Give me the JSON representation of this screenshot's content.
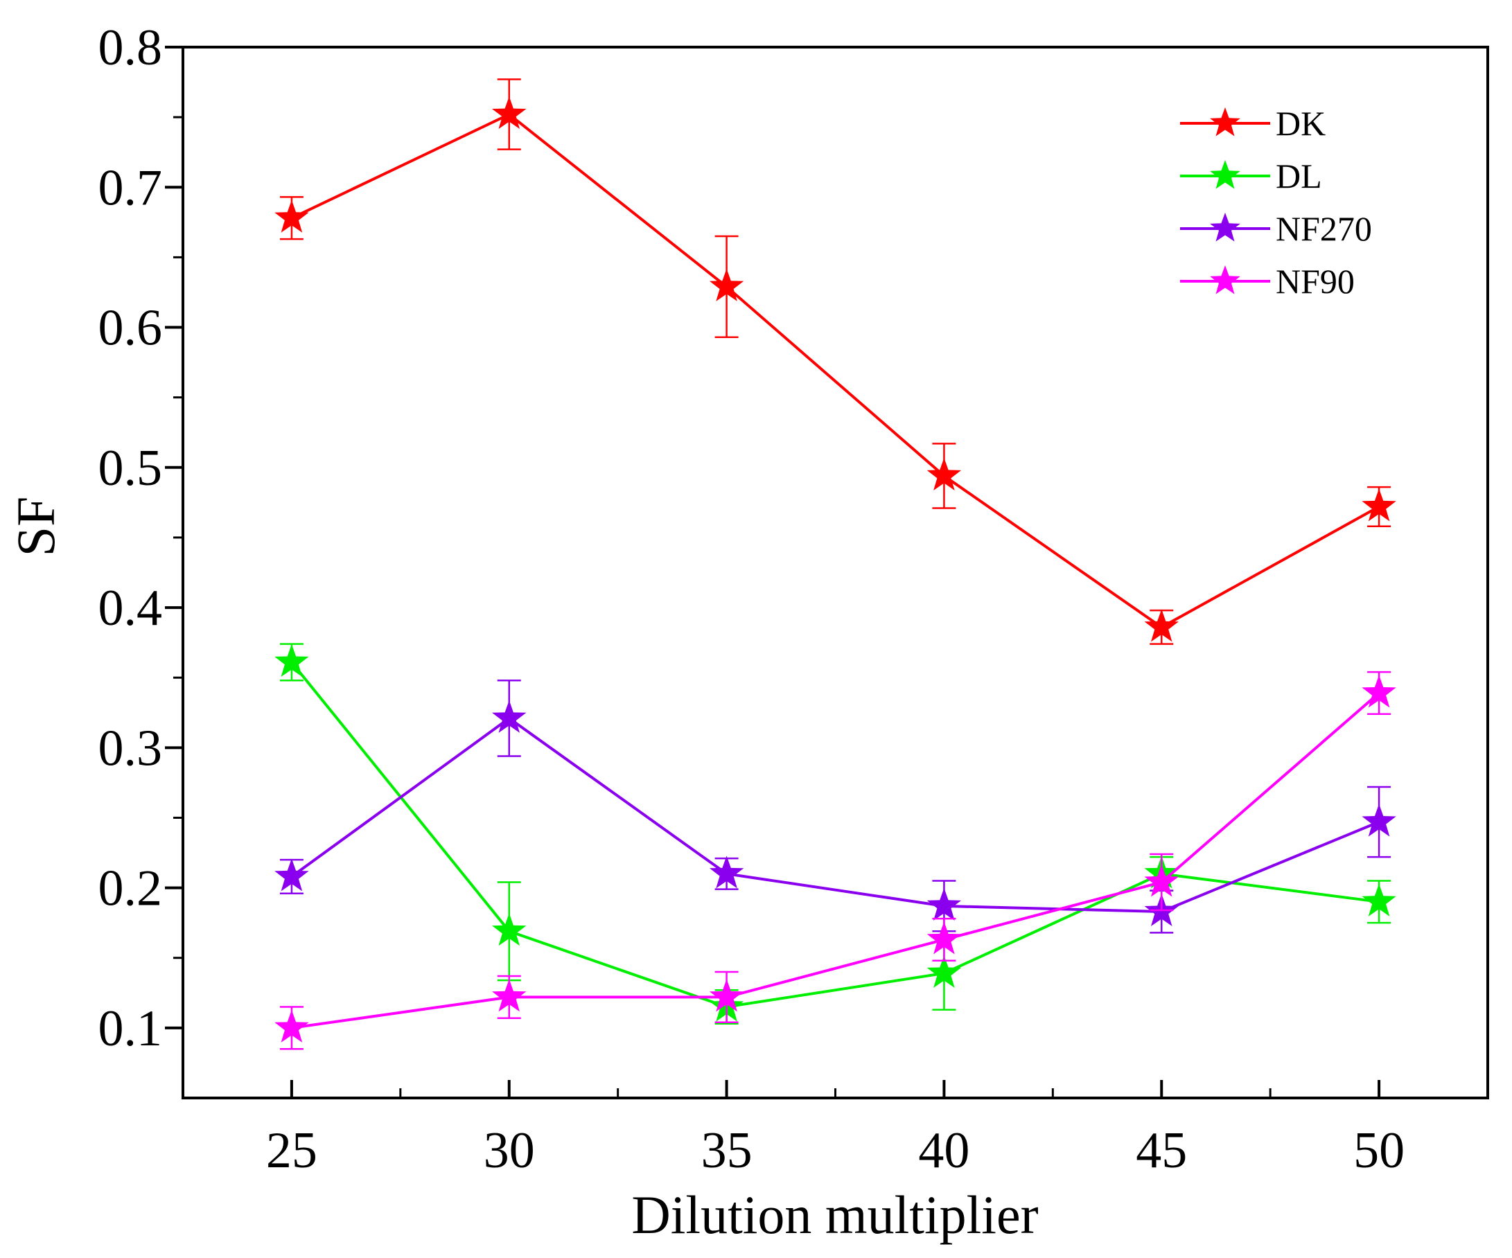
{
  "chart_data": {
    "type": "line",
    "title": "",
    "xlabel": "Dilution multiplier",
    "ylabel": "SF",
    "xlim": [
      22.5,
      52.5
    ],
    "ylim": [
      0.05,
      0.8
    ],
    "x_ticks": [
      25,
      30,
      35,
      40,
      45,
      50
    ],
    "x_tick_labels": [
      "25",
      "30",
      "35",
      "40",
      "45",
      "50"
    ],
    "y_ticks": [
      0.1,
      0.2,
      0.3,
      0.4,
      0.5,
      0.6,
      0.7,
      0.8
    ],
    "y_tick_labels": [
      "0.1",
      "0.2",
      "0.3",
      "0.4",
      "0.5",
      "0.6",
      "0.7",
      "0.8"
    ],
    "grid": false,
    "legend_position": "top-right",
    "x": [
      25,
      30,
      35,
      40,
      45,
      50
    ],
    "series": [
      {
        "name": "DK",
        "color": "#ff0000",
        "values": [
          0.678,
          0.752,
          0.629,
          0.494,
          0.386,
          0.472
        ],
        "errors": [
          0.015,
          0.025,
          0.036,
          0.023,
          0.012,
          0.014
        ]
      },
      {
        "name": "DL",
        "color": "#00ee00",
        "values": [
          0.361,
          0.169,
          0.115,
          0.139,
          0.21,
          0.19
        ],
        "errors": [
          0.013,
          0.035,
          0.012,
          0.026,
          0.012,
          0.015
        ]
      },
      {
        "name": "NF270",
        "color": "#8a00ee",
        "values": [
          0.208,
          0.321,
          0.21,
          0.187,
          0.183,
          0.247
        ],
        "errors": [
          0.012,
          0.027,
          0.011,
          0.018,
          0.015,
          0.025
        ]
      },
      {
        "name": "NF90",
        "color": "#ff00ff",
        "values": [
          0.1,
          0.122,
          0.122,
          0.163,
          0.204,
          0.339
        ],
        "errors": [
          0.015,
          0.015,
          0.018,
          0.015,
          0.02,
          0.015
        ]
      }
    ]
  }
}
